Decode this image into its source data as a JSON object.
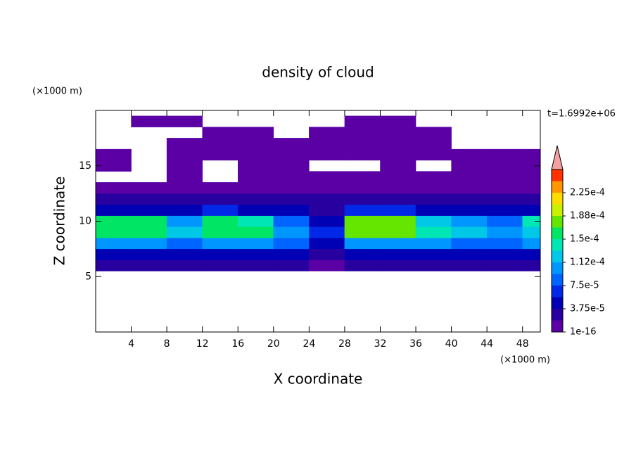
{
  "chart_data": {
    "type": "contour",
    "title": "density of cloud",
    "x_label": "X coordinate",
    "y_label": "Z coordinate",
    "x_unit": "(×1000 m)",
    "y_unit": "(×1000 m)",
    "time_label": "t=1.6992e+06",
    "xlim": [
      0,
      50
    ],
    "ylim": [
      0,
      20
    ],
    "xticks": [
      4,
      8,
      12,
      16,
      20,
      24,
      28,
      32,
      36,
      40,
      44,
      48
    ],
    "yticks": [
      5,
      10,
      15
    ],
    "x": [
      2,
      6,
      10,
      14,
      18,
      22,
      26,
      30,
      34,
      38,
      42,
      46,
      50
    ],
    "y": [
      6,
      7,
      8,
      9,
      10,
      11,
      12,
      13,
      14,
      15,
      16,
      17,
      18,
      19
    ],
    "z": [
      [
        2e-05,
        2e-05,
        2e-05,
        2e-05,
        2e-05,
        2e-05,
        1e-05,
        2e-05,
        2e-05,
        2e-05,
        2e-05,
        2e-05,
        2e-05
      ],
      [
        5e-05,
        5e-05,
        4e-05,
        5e-05,
        5e-05,
        4e-05,
        2e-05,
        5e-05,
        5e-05,
        5e-05,
        4e-05,
        4e-05,
        5e-05
      ],
      [
        0.00011,
        0.00011,
        9e-05,
        0.00011,
        0.00011,
        8e-05,
        5e-05,
        0.00011,
        0.00011,
        0.0001,
        9e-05,
        9e-05,
        0.00011
      ],
      [
        0.00016,
        0.00016,
        0.00012,
        0.00015,
        0.00015,
        0.0001,
        6e-05,
        0.00017,
        0.00017,
        0.00014,
        0.00012,
        0.00011,
        0.00013
      ],
      [
        0.00016,
        0.00015,
        0.00011,
        0.00016,
        0.00014,
        9e-05,
        5e-05,
        0.00017,
        0.00017,
        0.00013,
        0.00011,
        9e-05,
        0.00014
      ],
      [
        5e-05,
        5e-05,
        4e-05,
        6e-05,
        5e-05,
        4e-05,
        3e-05,
        6e-05,
        6e-05,
        5e-05,
        4e-05,
        4e-05,
        5e-05
      ],
      [
        2.5e-05,
        2.5e-05,
        2e-05,
        2.5e-05,
        2.5e-05,
        2e-05,
        2e-05,
        2.5e-05,
        2.5e-05,
        2.5e-05,
        2e-05,
        2e-05,
        2.5e-05
      ],
      [
        1e-05,
        1e-05,
        1e-05,
        1e-05,
        1e-05,
        1e-05,
        1e-05,
        1e-05,
        1e-05,
        1e-05,
        1e-05,
        1e-05,
        1e-05
      ],
      [
        null,
        null,
        5e-06,
        null,
        5e-06,
        5e-06,
        5e-06,
        5e-06,
        5e-06,
        5e-06,
        5e-06,
        5e-06,
        5e-06
      ],
      [
        5e-06,
        null,
        5e-06,
        null,
        5e-06,
        5e-06,
        null,
        null,
        5e-06,
        null,
        5e-06,
        5e-06,
        5e-06
      ],
      [
        5e-06,
        null,
        5e-06,
        5e-06,
        5e-06,
        5e-06,
        5e-06,
        5e-06,
        5e-06,
        5e-06,
        5e-06,
        5e-06,
        5e-06
      ],
      [
        null,
        null,
        5e-06,
        5e-06,
        5e-06,
        5e-06,
        5e-06,
        5e-06,
        5e-06,
        5e-06,
        null,
        null,
        null
      ],
      [
        null,
        null,
        null,
        5e-06,
        5e-06,
        null,
        5e-06,
        5e-06,
        5e-06,
        5e-06,
        null,
        null,
        null
      ],
      [
        null,
        5e-06,
        5e-06,
        null,
        null,
        null,
        null,
        5e-06,
        5e-06,
        null,
        null,
        null,
        null
      ]
    ],
    "colorbar": {
      "levels": [
        1e-16,
        1.875e-05,
        {
          "value": 3.75e-05,
          "label": "3.75e-5"
        },
        5.625e-05,
        {
          "value": 7.5e-05,
          "label": "7.5e-5"
        },
        9.375e-05,
        {
          "value": 0.0001125,
          "label": "1.12e-4"
        },
        0.00013125,
        {
          "value": 0.00015,
          "label": "1.5e-4"
        },
        0.00016875,
        {
          "value": 0.0001875,
          "label": "1.88e-4"
        },
        0.00020625,
        {
          "value": 0.000225,
          "label": "2.25e-4"
        },
        0.00024375,
        0.0002625
      ],
      "colors": [
        "#5a00a5",
        "#2800a0",
        "#0000b4",
        "#0028e6",
        "#0064ff",
        "#0096ff",
        "#00c8e6",
        "#00e6b4",
        "#00e664",
        "#64e600",
        "#c8f000",
        "#ffdc00",
        "#ff9600",
        "#ff3200"
      ],
      "extend_color": "#f4a0a0"
    }
  }
}
